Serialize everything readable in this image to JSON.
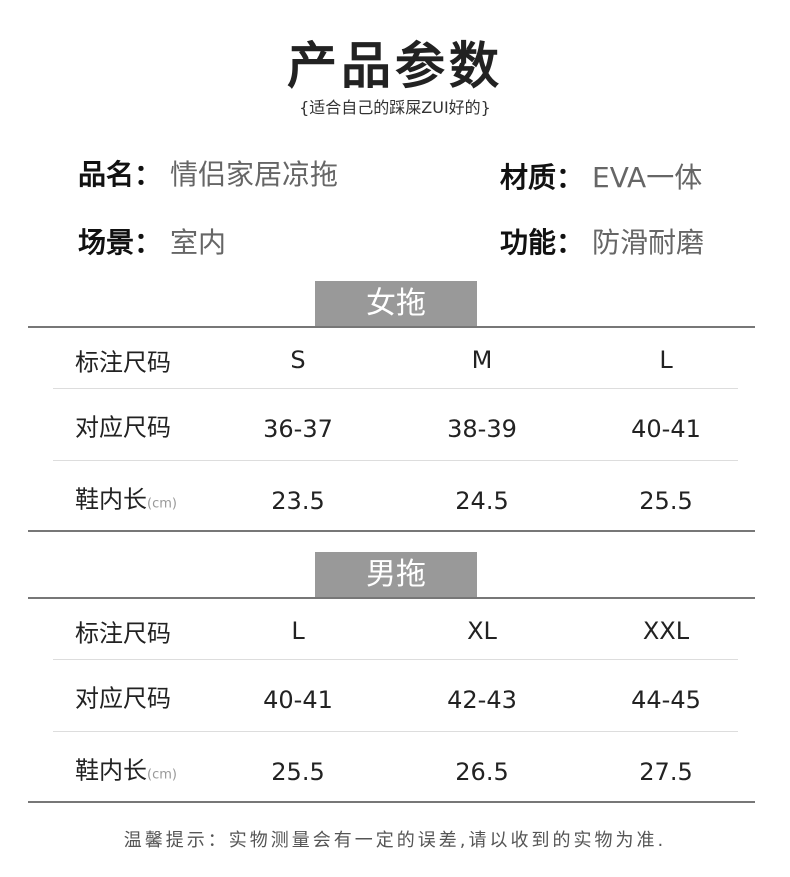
{
  "header": {
    "title": "产品参数",
    "subtitle": "{适合自己的踩屎ZUI好的}"
  },
  "attributes": [
    {
      "label": "品名：",
      "value": "情侣家居凉拖"
    },
    {
      "label": "材质：",
      "value": "EVA一体"
    },
    {
      "label": "场景：",
      "value": "室内"
    },
    {
      "label": "功能：",
      "value": "防滑耐磨"
    }
  ],
  "tables": [
    {
      "title": "女拖",
      "rows": [
        {
          "label": "标注尺码",
          "cells": [
            "S",
            "M",
            "L"
          ]
        },
        {
          "label": "对应尺码",
          "cells": [
            "36-37",
            "38-39",
            "40-41"
          ]
        },
        {
          "label": "鞋内长",
          "unit": "(cm)",
          "cells": [
            "23.5",
            "24.5",
            "25.5"
          ]
        }
      ]
    },
    {
      "title": "男拖",
      "rows": [
        {
          "label": "标注尺码",
          "cells": [
            "L",
            "XL",
            "XXL"
          ]
        },
        {
          "label": "对应尺码",
          "cells": [
            "40-41",
            "42-43",
            "44-45"
          ]
        },
        {
          "label": "鞋内长",
          "unit": "(cm)",
          "cells": [
            "25.5",
            "26.5",
            "27.5"
          ]
        }
      ]
    }
  ],
  "footer": {
    "note": "温馨提示：实物测量会有一定的误差,请以收到的实物为准."
  }
}
